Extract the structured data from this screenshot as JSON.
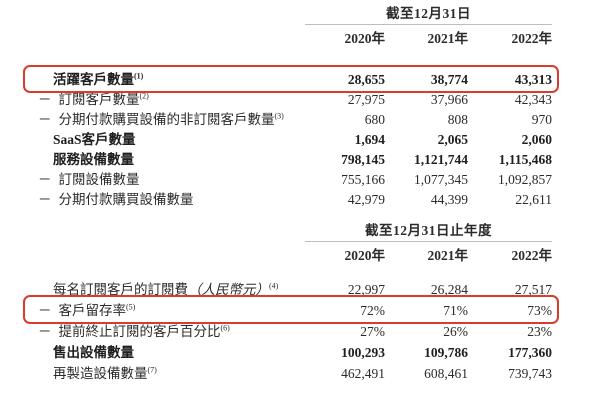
{
  "page": {
    "dash_prefix": "－",
    "text_color": "#2b2b2b",
    "highlight_box_color": "#d93b2c",
    "caption_rule_color": "#bdbdbd",
    "background": "#ffffff"
  },
  "tables": [
    {
      "period_caption": "截至12月31日",
      "years": [
        "2020年",
        "2021年",
        "2022年"
      ],
      "rows": [
        {
          "label": "活躍客戶數量",
          "sup": "(1)",
          "values": [
            "28,655",
            "38,774",
            "43,313"
          ],
          "bold": true,
          "highlight": true
        },
        {
          "label": "訂閱客戶數量",
          "sup": "(2)",
          "values": [
            "27,975",
            "37,966",
            "42,343"
          ],
          "dash": true
        },
        {
          "label": "分期付款購買設備的非訂閱客戶數量",
          "sup": "(3)",
          "values": [
            "680",
            "808",
            "970"
          ],
          "dash": true
        },
        {
          "label": "SaaS客戶數量",
          "sup": "",
          "values": [
            "1,694",
            "2,065",
            "2,060"
          ],
          "bold": true
        },
        {
          "label": "服務設備數量",
          "sup": "",
          "values": [
            "798,145",
            "1,121,744",
            "1,115,468"
          ],
          "bold": true
        },
        {
          "label": "訂閱設備數量",
          "sup": "",
          "values": [
            "755,166",
            "1,077,345",
            "1,092,857"
          ],
          "dash": true
        },
        {
          "label": "分期付款購買設備數量",
          "sup": "",
          "values": [
            "42,979",
            "44,399",
            "22,611"
          ],
          "dash": true
        }
      ]
    },
    {
      "period_caption": "截至12月31日止年度",
      "years": [
        "2020年",
        "2021年",
        "2022年"
      ],
      "rows": [
        {
          "label": "每名訂閱客戶的訂閱費",
          "italic": "（人民幣元）",
          "sup": "(4)",
          "values": [
            "22,997",
            "26,284",
            "27,517"
          ]
        },
        {
          "label": "客戶留存率",
          "sup": "(5)",
          "values": [
            "72%",
            "71%",
            "73%"
          ],
          "dash": true,
          "highlight": true
        },
        {
          "label": "提前終止訂閱的客戶百分比",
          "sup": "(6)",
          "values": [
            "27%",
            "26%",
            "23%"
          ],
          "dash": true
        },
        {
          "label": "售出設備數量",
          "sup": "",
          "values": [
            "100,293",
            "109,786",
            "177,360"
          ],
          "bold": true
        },
        {
          "label": "再製造設備數量",
          "sup": "(7)",
          "values": [
            "462,491",
            "608,461",
            "739,743"
          ]
        }
      ]
    }
  ]
}
